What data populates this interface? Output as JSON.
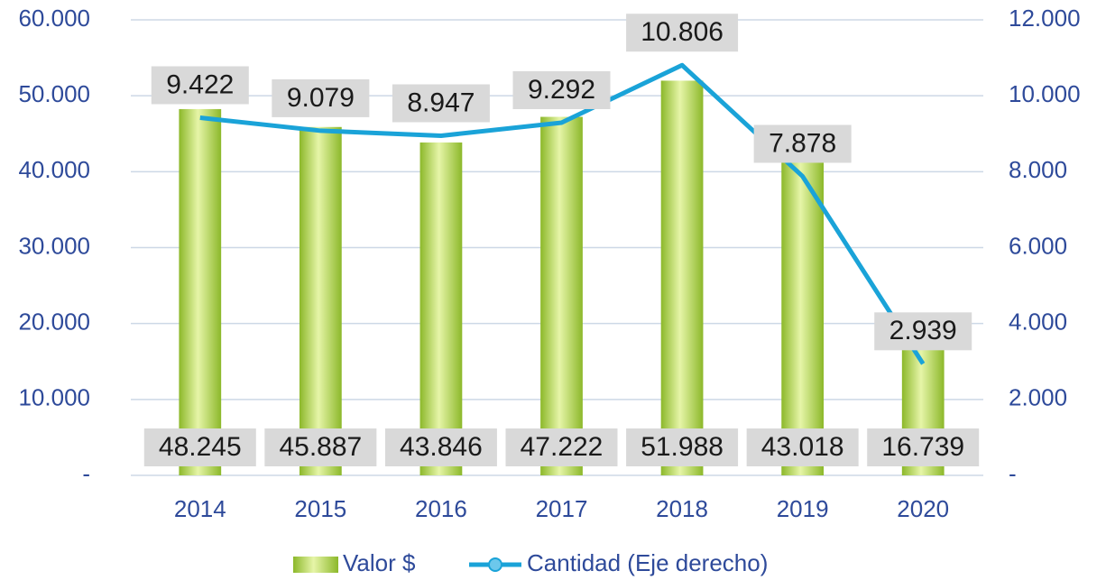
{
  "chart_data": {
    "type": "bar-line",
    "categories": [
      "2014",
      "2015",
      "2016",
      "2017",
      "2018",
      "2019",
      "2020"
    ],
    "series": [
      {
        "name": "Valor $",
        "type": "bar",
        "color": "#a8d040",
        "values": [
          48245,
          45887,
          43846,
          47222,
          51988,
          43018,
          16739
        ],
        "value_labels": [
          "48.245",
          "45.887",
          "43.846",
          "47.222",
          "51.988",
          "43.018",
          "16.739"
        ]
      },
      {
        "name": "Cantidad (Eje derecho)",
        "type": "line",
        "axis": "y2",
        "color": "#1aa3d8",
        "values": [
          9422,
          9079,
          8947,
          9292,
          10806,
          7878,
          2939
        ],
        "value_labels": [
          "9.422",
          "9.079",
          "8.947",
          "9.292",
          "10.806",
          "7.878",
          "2.939"
        ]
      }
    ],
    "ylim": [
      0,
      60000
    ],
    "yticks": [
      {
        "value": 0,
        "label": "-"
      },
      {
        "value": 10000,
        "label": "10.000"
      },
      {
        "value": 20000,
        "label": "20.000"
      },
      {
        "value": 30000,
        "label": "30.000"
      },
      {
        "value": 40000,
        "label": "40.000"
      },
      {
        "value": 50000,
        "label": "50.000"
      },
      {
        "value": 60000,
        "label": "60.000"
      }
    ],
    "y2lim": [
      0,
      12000
    ],
    "y2ticks": [
      {
        "value": 0,
        "label": "-"
      },
      {
        "value": 2000,
        "label": "2.000"
      },
      {
        "value": 4000,
        "label": "4.000"
      },
      {
        "value": 6000,
        "label": "6.000"
      },
      {
        "value": 8000,
        "label": "8.000"
      },
      {
        "value": 10000,
        "label": "10.000"
      },
      {
        "value": 12000,
        "label": "12.000"
      }
    ],
    "grid": true,
    "legend": "bottom"
  }
}
